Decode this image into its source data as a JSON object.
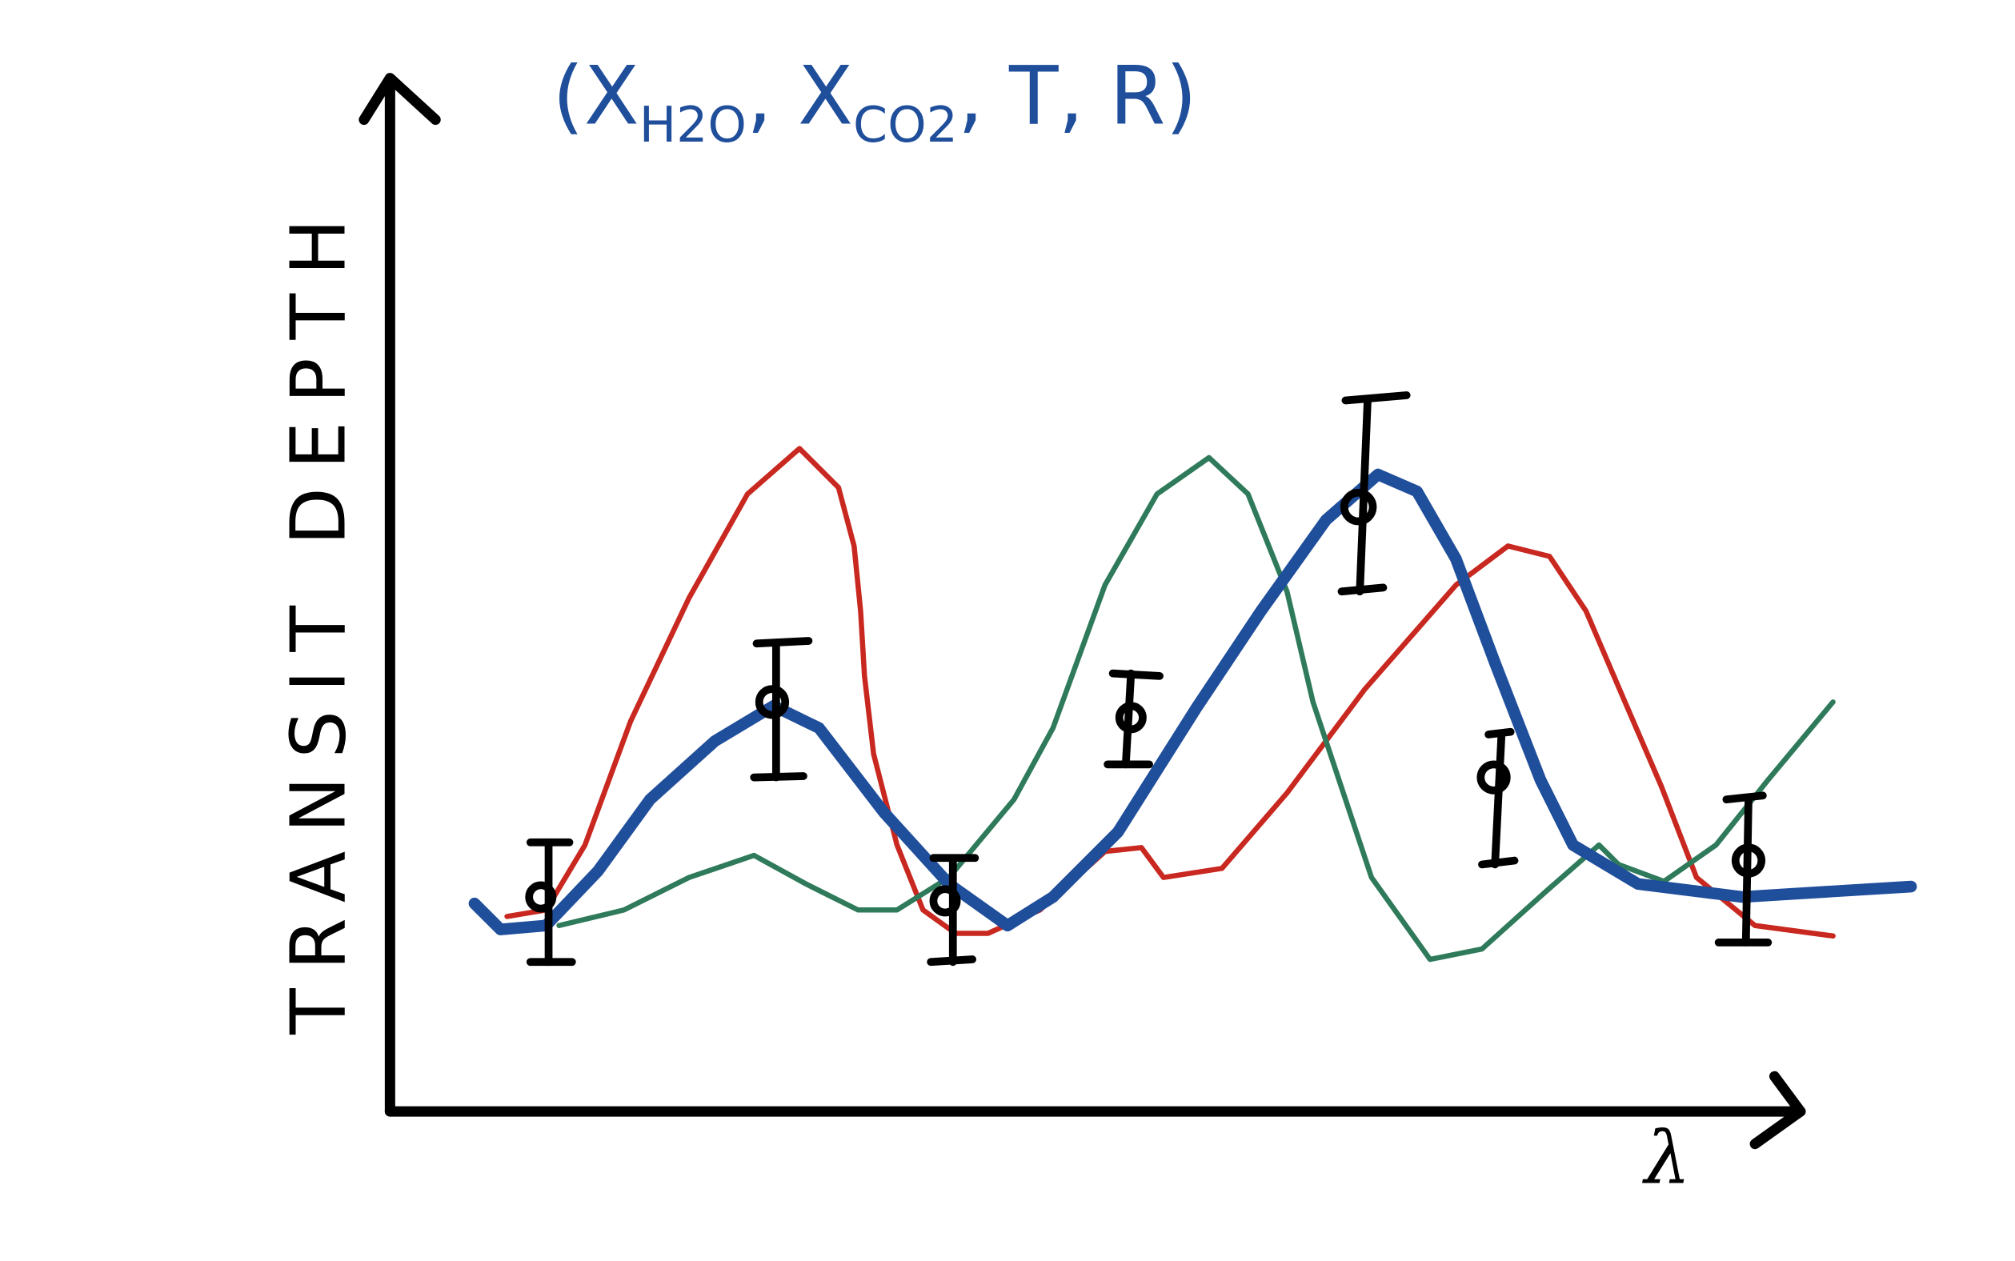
{
  "title": {
    "open": "(",
    "separator": ", ",
    "close": ")",
    "parameters": [
      {
        "symbol": "X",
        "subscript": "H2O"
      },
      {
        "symbol": "X",
        "subscript": "CO2"
      },
      {
        "symbol": "T"
      },
      {
        "symbol": "R"
      }
    ]
  },
  "y_axis_label": "TRANSIT DEPTH",
  "x_axis_label": "λ"
}
